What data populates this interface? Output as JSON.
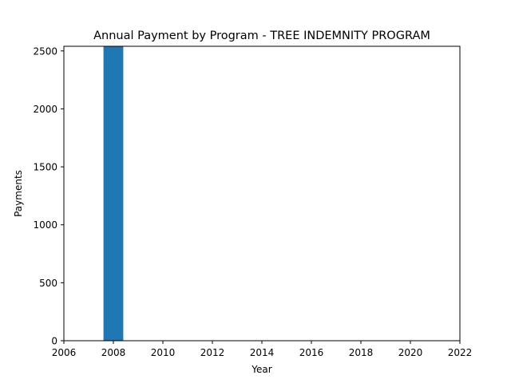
{
  "chart_data": {
    "type": "bar",
    "title": "Annual Payment by Program - TREE INDEMNITY PROGRAM",
    "xlabel": "Year",
    "ylabel": "Payments",
    "x": [
      2008
    ],
    "values": [
      2540
    ],
    "bar_width": 0.8,
    "xlim": [
      2006,
      2022
    ],
    "ylim": [
      0,
      2540
    ],
    "xticks": [
      2006,
      2008,
      2010,
      2012,
      2014,
      2016,
      2018,
      2020,
      2022
    ],
    "yticks": [
      0,
      500,
      1000,
      1500,
      2000,
      2500
    ],
    "bar_color": "#1f77b4",
    "grid": false,
    "legend": "none"
  }
}
